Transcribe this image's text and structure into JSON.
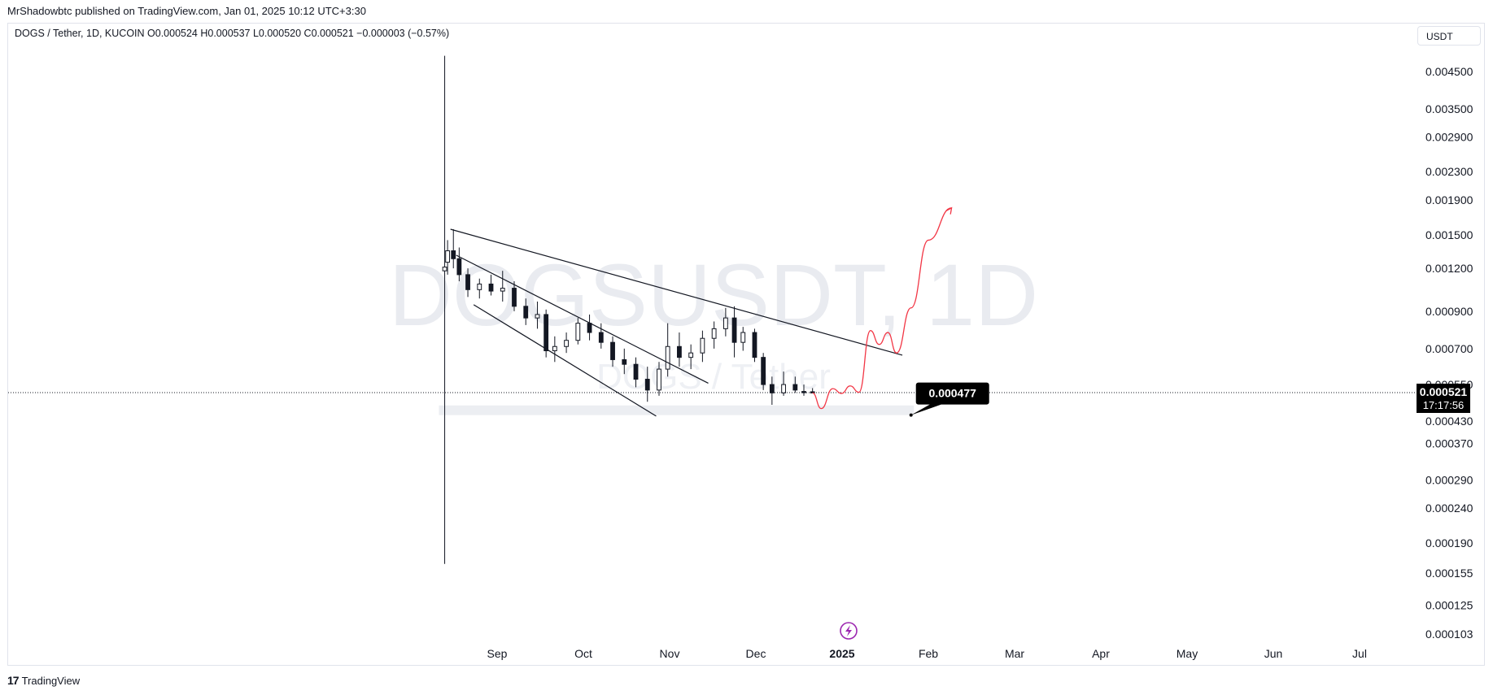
{
  "publisher_line": "MrShadowbtc published on TradingView.com, Jan 01, 2025 10:12 UTC+3:30",
  "symbol_line": "DOGS / Tether, 1D, KUCOIN  O0.000524  H0.000537  L0.000520  C0.000521  −0.000003 (−0.57%)",
  "currency": "USDT",
  "watermark": {
    "symbol": "DOGSUSDT, 1D",
    "name": "DOGS / Tether"
  },
  "footer": {
    "logo": "17",
    "brand": "TradingView"
  },
  "colors": {
    "candle": "#131722",
    "projection": "#f23645",
    "price_line": "#131722",
    "label_bg": "#000000",
    "zone": "#eceef2"
  },
  "chart_data": {
    "type": "candlestick",
    "y_scale": "log",
    "ylim": [
      9.65e-05,
      0.00578
    ],
    "y_ticks": [
      "0.004500",
      "0.003500",
      "0.002900",
      "0.002300",
      "0.001900",
      "0.001500",
      "0.001200",
      "0.000900",
      "0.000700",
      "0.000550",
      "0.000430",
      "0.000370",
      "0.000290",
      "0.000240",
      "0.000190",
      "0.000155",
      "0.000125",
      "0.000103"
    ],
    "x_ticks": [
      {
        "label": "Sep",
        "bold": false
      },
      {
        "label": "Oct",
        "bold": false
      },
      {
        "label": "Nov",
        "bold": false
      },
      {
        "label": "Dec",
        "bold": false
      },
      {
        "label": "2025",
        "bold": true
      },
      {
        "label": "Feb",
        "bold": false
      },
      {
        "label": "Mar",
        "bold": false
      },
      {
        "label": "Apr",
        "bold": false
      },
      {
        "label": "May",
        "bold": false
      },
      {
        "label": "Jun",
        "bold": false
      },
      {
        "label": "Jul",
        "bold": false
      }
    ],
    "x_start": "2024-08-26",
    "x_end": "2025-07-20",
    "last_price": {
      "value": "0.000521",
      "countdown": "17:17:56"
    },
    "annotation": {
      "label": "0.000477",
      "date": "2025-02-04",
      "value": 0.000448
    },
    "first_candle": {
      "date": "2024-08-27",
      "open": 0.00118,
      "high": 0.005,
      "low": 0.000165,
      "close": 0.00121
    },
    "candles": [
      {
        "date": "2024-08-28",
        "open": 0.00125,
        "high": 0.00145,
        "low": 0.00115,
        "close": 0.00135
      },
      {
        "date": "2024-08-30",
        "open": 0.00135,
        "high": 0.00156,
        "low": 0.0012,
        "close": 0.00128
      },
      {
        "date": "2024-09-01",
        "open": 0.00128,
        "high": 0.00138,
        "low": 0.0011,
        "close": 0.00115
      },
      {
        "date": "2024-09-04",
        "open": 0.00115,
        "high": 0.0012,
        "low": 0.00099,
        "close": 0.00104
      },
      {
        "date": "2024-09-08",
        "open": 0.00104,
        "high": 0.00112,
        "low": 0.00098,
        "close": 0.00108
      },
      {
        "date": "2024-09-12",
        "open": 0.00108,
        "high": 0.00115,
        "low": 0.001,
        "close": 0.00103
      },
      {
        "date": "2024-09-16",
        "open": 0.00103,
        "high": 0.00118,
        "low": 0.00096,
        "close": 0.00105
      },
      {
        "date": "2024-09-20",
        "open": 0.00105,
        "high": 0.0011,
        "low": 0.0009,
        "close": 0.00093
      },
      {
        "date": "2024-09-24",
        "open": 0.00093,
        "high": 0.00098,
        "low": 0.00082,
        "close": 0.00086
      },
      {
        "date": "2024-09-28",
        "open": 0.00086,
        "high": 0.00096,
        "low": 0.0008,
        "close": 0.00088
      },
      {
        "date": "2024-10-01",
        "open": 0.00088,
        "high": 0.00091,
        "low": 0.00066,
        "close": 0.00069
      },
      {
        "date": "2024-10-04",
        "open": 0.00069,
        "high": 0.00076,
        "low": 0.00064,
        "close": 0.00071
      },
      {
        "date": "2024-10-08",
        "open": 0.00071,
        "high": 0.00078,
        "low": 0.00068,
        "close": 0.00074
      },
      {
        "date": "2024-10-12",
        "open": 0.00074,
        "high": 0.00086,
        "low": 0.00072,
        "close": 0.00083
      },
      {
        "date": "2024-10-16",
        "open": 0.00083,
        "high": 0.00088,
        "low": 0.00074,
        "close": 0.00078
      },
      {
        "date": "2024-10-20",
        "open": 0.00078,
        "high": 0.00083,
        "low": 0.0007,
        "close": 0.00073
      },
      {
        "date": "2024-10-24",
        "open": 0.00073,
        "high": 0.00076,
        "low": 0.00062,
        "close": 0.00065
      },
      {
        "date": "2024-10-28",
        "open": 0.00065,
        "high": 0.0007,
        "low": 0.00059,
        "close": 0.00063
      },
      {
        "date": "2024-11-01",
        "open": 0.00063,
        "high": 0.00066,
        "low": 0.00054,
        "close": 0.00057
      },
      {
        "date": "2024-11-05",
        "open": 0.00057,
        "high": 0.00062,
        "low": 0.00049,
        "close": 0.00053
      },
      {
        "date": "2024-11-09",
        "open": 0.00053,
        "high": 0.00064,
        "low": 0.00051,
        "close": 0.00061
      },
      {
        "date": "2024-11-12",
        "open": 0.00061,
        "high": 0.00083,
        "low": 0.00058,
        "close": 0.00071
      },
      {
        "date": "2024-11-16",
        "open": 0.00071,
        "high": 0.00078,
        "low": 0.00062,
        "close": 0.00066
      },
      {
        "date": "2024-11-20",
        "open": 0.00066,
        "high": 0.00072,
        "low": 0.00061,
        "close": 0.00068
      },
      {
        "date": "2024-11-24",
        "open": 0.00068,
        "high": 0.00079,
        "low": 0.00064,
        "close": 0.00075
      },
      {
        "date": "2024-11-28",
        "open": 0.00075,
        "high": 0.00084,
        "low": 0.0007,
        "close": 0.0008
      },
      {
        "date": "2024-12-02",
        "open": 0.0008,
        "high": 0.00092,
        "low": 0.00076,
        "close": 0.00086
      },
      {
        "date": "2024-12-05",
        "open": 0.00086,
        "high": 0.00093,
        "low": 0.00066,
        "close": 0.00073
      },
      {
        "date": "2024-12-08",
        "open": 0.00073,
        "high": 0.00081,
        "low": 0.00069,
        "close": 0.00078
      },
      {
        "date": "2024-12-12",
        "open": 0.00078,
        "high": 0.0008,
        "low": 0.00064,
        "close": 0.00066
      },
      {
        "date": "2024-12-15",
        "open": 0.00066,
        "high": 0.00068,
        "low": 0.00053,
        "close": 0.00055
      },
      {
        "date": "2024-12-18",
        "open": 0.00055,
        "high": 0.00058,
        "low": 0.00048,
        "close": 0.00052
      },
      {
        "date": "2024-12-22",
        "open": 0.00052,
        "high": 0.0006,
        "low": 0.00051,
        "close": 0.00055
      },
      {
        "date": "2024-12-26",
        "open": 0.00055,
        "high": 0.00058,
        "low": 0.00052,
        "close": 0.00053
      },
      {
        "date": "2024-12-29",
        "open": 0.000525,
        "high": 0.00055,
        "low": 0.00051,
        "close": 0.000524
      },
      {
        "date": "2025-01-01",
        "open": 0.000524,
        "high": 0.000537,
        "low": 0.00052,
        "close": 0.000521
      }
    ],
    "trendlines": [
      {
        "name": "descending resistance",
        "from": {
          "date": "2024-08-29",
          "value": 0.00156
        },
        "to": {
          "date": "2025-02-01",
          "value": 0.00067
        }
      },
      {
        "name": "channel upper",
        "from": {
          "date": "2024-08-31",
          "value": 0.00131
        },
        "to": {
          "date": "2024-11-26",
          "value": 0.000555
        }
      },
      {
        "name": "channel lower",
        "from": {
          "date": "2024-09-06",
          "value": 0.00094
        },
        "to": {
          "date": "2024-11-08",
          "value": 0.000445
        }
      }
    ],
    "support_zone": {
      "from": "2024-08-25",
      "to": "2025-02-05",
      "low": 0.000448,
      "high": 0.000478
    },
    "projection": [
      {
        "date": "2025-01-01",
        "value": 0.00052
      },
      {
        "date": "2025-01-04",
        "value": 0.000468
      },
      {
        "date": "2025-01-08",
        "value": 0.000535
      },
      {
        "date": "2025-01-11",
        "value": 0.000518
      },
      {
        "date": "2025-01-14",
        "value": 0.000545
      },
      {
        "date": "2025-01-17",
        "value": 0.000522
      },
      {
        "date": "2025-01-21",
        "value": 0.00079
      },
      {
        "date": "2025-01-24",
        "value": 0.00072
      },
      {
        "date": "2025-01-27",
        "value": 0.00078
      },
      {
        "date": "2025-01-30",
        "value": 0.00068
      },
      {
        "date": "2025-02-04",
        "value": 0.00092
      },
      {
        "date": "2025-02-10",
        "value": 0.00145
      },
      {
        "date": "2025-02-18",
        "value": 0.0018
      }
    ]
  }
}
